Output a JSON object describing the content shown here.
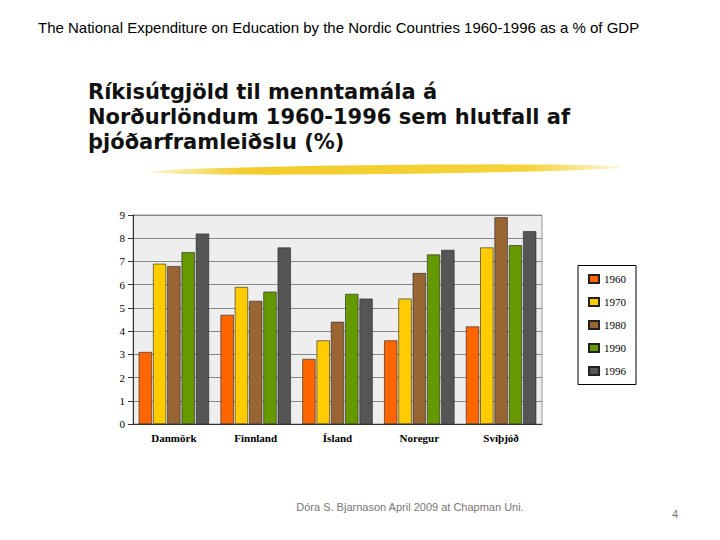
{
  "page": {
    "header": "The National Expenditure on Education by the Nordic Countries 1960-1996 as a % of GDP",
    "footer": "Dóra S. Bjarnason April 2009 at Chapman Uni.",
    "number": 4
  },
  "chart_data": {
    "type": "bar",
    "title": "Ríkisútgjöld til menntamála á Norðurlöndum 1960-1996 sem hlutfall af þjóðarframleiðslu (%)",
    "categories": [
      "Danmörk",
      "Finnland",
      "Ísland",
      "Noregur",
      "Svíþjóð"
    ],
    "series": [
      {
        "name": "1960",
        "color": "#ff6600",
        "values": [
          3.1,
          4.7,
          2.8,
          3.6,
          4.2
        ]
      },
      {
        "name": "1970",
        "color": "#ffcc00",
        "values": [
          6.9,
          5.9,
          3.6,
          5.4,
          7.6
        ]
      },
      {
        "name": "1980",
        "color": "#996633",
        "values": [
          6.8,
          5.3,
          4.4,
          6.5,
          8.9
        ]
      },
      {
        "name": "1990",
        "color": "#669900",
        "values": [
          7.4,
          5.7,
          5.6,
          7.3,
          7.7
        ]
      },
      {
        "name": "1996",
        "color": "#555555",
        "values": [
          8.2,
          7.6,
          5.4,
          7.5,
          8.3
        ]
      }
    ],
    "ylim": [
      0,
      9
    ],
    "yticks": [
      0,
      1,
      2,
      3,
      4,
      5,
      6,
      7,
      8,
      9
    ],
    "grid": true,
    "legend": "right"
  }
}
